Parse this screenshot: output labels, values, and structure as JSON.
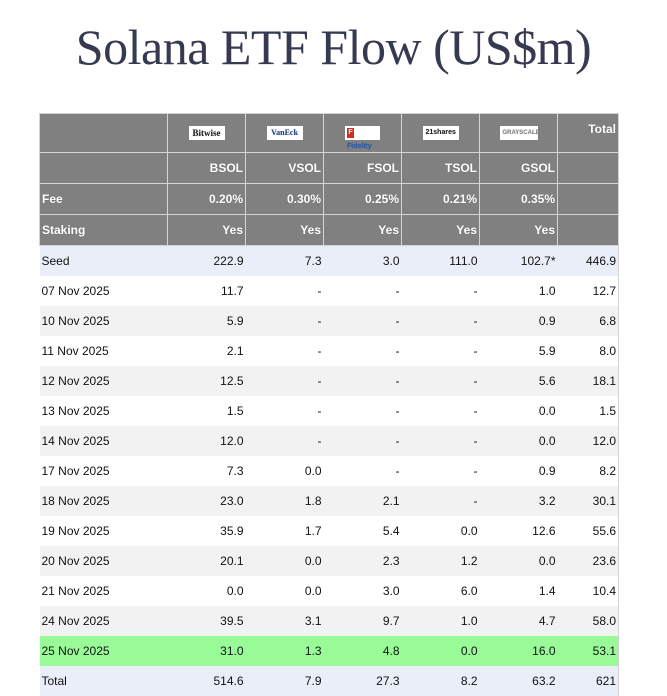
{
  "title": "Solana ETF Flow (US$m)",
  "colors": {
    "header_bg": "#808080",
    "seed_total_bg": "#eaeef8",
    "stripe_bg": "#f2f2f2",
    "latest_row_bg": "#98fb98",
    "title_color": "#353a50"
  },
  "table": {
    "issuers": [
      {
        "logo": "Bitwise",
        "ticker": "BSOL",
        "fee": "0.20%",
        "staking": "Yes"
      },
      {
        "logo": "VanEck",
        "ticker": "VSOL",
        "fee": "0.30%",
        "staking": "Yes"
      },
      {
        "logo": "Fidelity",
        "ticker": "FSOL",
        "fee": "0.25%",
        "staking": "Yes"
      },
      {
        "logo": "21shares",
        "ticker": "TSOL",
        "fee": "0.21%",
        "staking": "Yes"
      },
      {
        "logo": "GRAYSCALE",
        "ticker": "GSOL",
        "fee": "0.35%",
        "staking": "Yes"
      }
    ],
    "total_header": "Total",
    "fee_label": "Fee",
    "staking_label": "Staking",
    "rows": [
      {
        "label": "Seed",
        "values": [
          "222.9",
          "7.3",
          "3.0",
          "111.0",
          "102.7*",
          "446.9"
        ]
      },
      {
        "label": "07 Nov 2025",
        "values": [
          "11.7",
          "-",
          "-",
          "-",
          "1.0",
          "12.7"
        ]
      },
      {
        "label": "10 Nov 2025",
        "values": [
          "5.9",
          "-",
          "-",
          "-",
          "0.9",
          "6.8"
        ]
      },
      {
        "label": "11 Nov 2025",
        "values": [
          "2.1",
          "-",
          "-",
          "-",
          "5.9",
          "8.0"
        ]
      },
      {
        "label": "12 Nov 2025",
        "values": [
          "12.5",
          "-",
          "-",
          "-",
          "5.6",
          "18.1"
        ]
      },
      {
        "label": "13 Nov 2025",
        "values": [
          "1.5",
          "-",
          "-",
          "-",
          "0.0",
          "1.5"
        ]
      },
      {
        "label": "14 Nov 2025",
        "values": [
          "12.0",
          "-",
          "-",
          "-",
          "0.0",
          "12.0"
        ]
      },
      {
        "label": "17 Nov 2025",
        "values": [
          "7.3",
          "0.0",
          "-",
          "-",
          "0.9",
          "8.2"
        ]
      },
      {
        "label": "18 Nov 2025",
        "values": [
          "23.0",
          "1.8",
          "2.1",
          "-",
          "3.2",
          "30.1"
        ]
      },
      {
        "label": "19 Nov 2025",
        "values": [
          "35.9",
          "1.7",
          "5.4",
          "0.0",
          "12.6",
          "55.6"
        ]
      },
      {
        "label": "20 Nov 2025",
        "values": [
          "20.1",
          "0.0",
          "2.3",
          "1.2",
          "0.0",
          "23.6"
        ]
      },
      {
        "label": "21 Nov 2025",
        "values": [
          "0.0",
          "0.0",
          "3.0",
          "6.0",
          "1.4",
          "10.4"
        ]
      },
      {
        "label": "24 Nov 2025",
        "values": [
          "39.5",
          "3.1",
          "9.7",
          "1.0",
          "4.7",
          "58.0"
        ]
      },
      {
        "label": "25 Nov 2025",
        "values": [
          "31.0",
          "1.3",
          "4.8",
          "0.0",
          "16.0",
          "53.1"
        ]
      },
      {
        "label": "Total",
        "values": [
          "514.6",
          "7.9",
          "27.3",
          "8.2",
          "63.2",
          "621"
        ]
      }
    ]
  }
}
